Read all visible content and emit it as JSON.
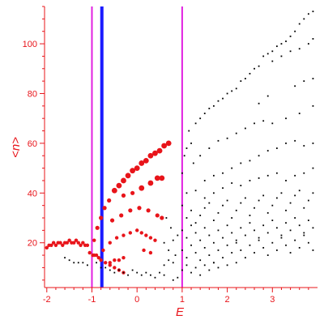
{
  "chart_data": {
    "type": "scatter",
    "title": "",
    "xlabel": "E",
    "ylabel": "<n>",
    "xlim": [
      -2.05,
      4.0
    ],
    "ylim": [
      2,
      115
    ],
    "x_ticks": [
      -2,
      -1,
      0,
      1,
      2,
      3
    ],
    "y_ticks": [
      20,
      40,
      60,
      80,
      100
    ],
    "grid": false,
    "legend": "none",
    "colors": {
      "axis": "#e8141a",
      "red_series": "#e8141a",
      "black_series": "#000000",
      "magenta_line": "#e020e0",
      "blue_line": "#1a1aff"
    },
    "vertical_lines": [
      {
        "x": -1.0,
        "color": "#e020e0"
      },
      {
        "x": -0.78,
        "color": "#1a1aff"
      },
      {
        "x": 1.0,
        "color": "#e020e0"
      }
    ],
    "series": [
      {
        "color": "#e8141a",
        "points": [
          [
            -2.0,
            18
          ],
          [
            -1.95,
            19
          ],
          [
            -1.9,
            19
          ],
          [
            -1.85,
            20
          ],
          [
            -1.8,
            19
          ],
          [
            -1.75,
            20
          ],
          [
            -1.7,
            20
          ],
          [
            -1.65,
            19
          ],
          [
            -1.6,
            20
          ],
          [
            -1.55,
            20
          ],
          [
            -1.5,
            21
          ],
          [
            -1.45,
            20
          ],
          [
            -1.4,
            20
          ],
          [
            -1.35,
            21
          ],
          [
            -1.3,
            20
          ],
          [
            -1.25,
            19
          ],
          [
            -1.2,
            20
          ],
          [
            -1.15,
            19
          ],
          [
            -1.1,
            19
          ],
          [
            -1.05,
            16
          ],
          [
            -0.98,
            15
          ],
          [
            -0.95,
            15
          ],
          [
            -0.9,
            15
          ],
          [
            -0.85,
            14
          ],
          [
            -0.8,
            13
          ],
          [
            -0.7,
            12
          ],
          [
            -0.6,
            11
          ],
          [
            -0.5,
            10
          ],
          [
            -0.4,
            9
          ],
          [
            -0.3,
            8
          ],
          [
            -0.95,
            21
          ],
          [
            -0.88,
            26
          ],
          [
            -0.8,
            30
          ],
          [
            -0.72,
            34
          ],
          [
            -0.62,
            37
          ],
          [
            -0.5,
            41
          ],
          [
            -0.4,
            43
          ],
          [
            -0.3,
            45
          ],
          [
            -0.2,
            47
          ],
          [
            -0.1,
            49
          ],
          [
            0.0,
            50
          ],
          [
            0.1,
            52
          ],
          [
            0.2,
            53
          ],
          [
            0.3,
            55
          ],
          [
            0.4,
            56
          ],
          [
            0.5,
            57
          ],
          [
            0.6,
            59
          ],
          [
            0.7,
            60
          ],
          [
            -0.75,
            17
          ],
          [
            -0.6,
            20
          ],
          [
            -0.45,
            22
          ],
          [
            -0.3,
            23
          ],
          [
            -0.15,
            24
          ],
          [
            0.0,
            25
          ],
          [
            0.1,
            24
          ],
          [
            0.2,
            23
          ],
          [
            0.3,
            22
          ],
          [
            0.4,
            21
          ],
          [
            -0.55,
            29
          ],
          [
            -0.35,
            31
          ],
          [
            -0.15,
            33
          ],
          [
            0.05,
            34
          ],
          [
            0.25,
            33
          ],
          [
            0.45,
            31
          ],
          [
            0.55,
            30
          ],
          [
            -0.3,
            39
          ],
          [
            -0.1,
            40
          ],
          [
            0.1,
            42
          ],
          [
            0.3,
            44
          ],
          [
            0.45,
            46
          ],
          [
            0.55,
            46
          ],
          [
            -0.6,
            12
          ],
          [
            -0.5,
            13
          ],
          [
            -0.4,
            13
          ],
          [
            -0.3,
            14
          ],
          [
            0.15,
            17
          ],
          [
            0.3,
            16
          ]
        ]
      },
      {
        "color": "#000000",
        "points": [
          [
            -1.6,
            14
          ],
          [
            -1.5,
            13
          ],
          [
            -1.4,
            12
          ],
          [
            -1.3,
            12
          ],
          [
            -1.2,
            12
          ],
          [
            -1.1,
            11
          ],
          [
            -0.9,
            12
          ],
          [
            -0.8,
            10
          ],
          [
            -0.7,
            10
          ],
          [
            -0.6,
            9
          ],
          [
            -0.5,
            8
          ],
          [
            -0.4,
            9
          ],
          [
            -0.3,
            8
          ],
          [
            -0.2,
            7
          ],
          [
            -0.1,
            9
          ],
          [
            0.0,
            8
          ],
          [
            0.1,
            7
          ],
          [
            0.2,
            8
          ],
          [
            0.3,
            7
          ],
          [
            0.4,
            6
          ],
          [
            0.5,
            8
          ],
          [
            0.6,
            7
          ],
          [
            0.8,
            5
          ],
          [
            0.9,
            6
          ],
          [
            0.6,
            11
          ],
          [
            0.7,
            13
          ],
          [
            0.8,
            12
          ],
          [
            0.85,
            15
          ],
          [
            0.7,
            17
          ],
          [
            0.6,
            20
          ],
          [
            0.8,
            21
          ],
          [
            0.9,
            23
          ],
          [
            0.65,
            30
          ],
          [
            0.75,
            26
          ],
          [
            1.0,
            48
          ],
          [
            1.05,
            55
          ],
          [
            1.1,
            58
          ],
          [
            1.15,
            65
          ],
          [
            1.2,
            60
          ],
          [
            1.25,
            52
          ],
          [
            1.3,
            68
          ],
          [
            1.4,
            70
          ],
          [
            1.5,
            72
          ],
          [
            1.6,
            74
          ],
          [
            1.7,
            75
          ],
          [
            1.8,
            77
          ],
          [
            1.9,
            78
          ],
          [
            2.0,
            80
          ],
          [
            2.1,
            81
          ],
          [
            2.2,
            82
          ],
          [
            2.3,
            85
          ],
          [
            2.4,
            86
          ],
          [
            2.5,
            88
          ],
          [
            2.6,
            90
          ],
          [
            2.7,
            91
          ],
          [
            2.8,
            95
          ],
          [
            2.9,
            96
          ],
          [
            3.0,
            97
          ],
          [
            3.1,
            99
          ],
          [
            3.2,
            100
          ],
          [
            3.3,
            101
          ],
          [
            3.4,
            103
          ],
          [
            3.5,
            105
          ],
          [
            3.6,
            108
          ],
          [
            3.7,
            110
          ],
          [
            3.8,
            112
          ],
          [
            3.9,
            113
          ],
          [
            3.0,
            93
          ],
          [
            3.2,
            95
          ],
          [
            3.4,
            97
          ],
          [
            3.6,
            98
          ],
          [
            3.8,
            100
          ],
          [
            3.9,
            102
          ],
          [
            2.7,
            76
          ],
          [
            2.9,
            79
          ],
          [
            3.5,
            83
          ],
          [
            3.7,
            85
          ],
          [
            3.9,
            86
          ],
          [
            3.0,
            68
          ],
          [
            3.3,
            70
          ],
          [
            3.6,
            72
          ],
          [
            3.9,
            75
          ],
          [
            1.4,
            55
          ],
          [
            1.6,
            58
          ],
          [
            1.8,
            61
          ],
          [
            2.0,
            62
          ],
          [
            2.2,
            64
          ],
          [
            2.4,
            66
          ],
          [
            2.6,
            68
          ],
          [
            2.8,
            69
          ],
          [
            1.5,
            45
          ],
          [
            1.7,
            47
          ],
          [
            1.9,
            48
          ],
          [
            2.1,
            50
          ],
          [
            2.3,
            52
          ],
          [
            2.5,
            53
          ],
          [
            2.7,
            55
          ],
          [
            2.9,
            57
          ],
          [
            3.1,
            58
          ],
          [
            3.3,
            60
          ],
          [
            3.5,
            61
          ],
          [
            3.7,
            59
          ],
          [
            3.9,
            60
          ],
          [
            1.1,
            40
          ],
          [
            1.3,
            41
          ],
          [
            1.5,
            38
          ],
          [
            1.7,
            40
          ],
          [
            1.9,
            42
          ],
          [
            2.1,
            44
          ],
          [
            2.3,
            43
          ],
          [
            2.5,
            45
          ],
          [
            2.7,
            46
          ],
          [
            2.9,
            47
          ],
          [
            3.1,
            48
          ],
          [
            3.3,
            45
          ],
          [
            3.5,
            47
          ],
          [
            3.7,
            48
          ],
          [
            3.9,
            50
          ],
          [
            1.0,
            35
          ],
          [
            1.1,
            30
          ],
          [
            1.2,
            33
          ],
          [
            1.3,
            28
          ],
          [
            1.4,
            31
          ],
          [
            1.5,
            34
          ],
          [
            1.6,
            36
          ],
          [
            1.7,
            29
          ],
          [
            1.8,
            32
          ],
          [
            1.9,
            35
          ],
          [
            2.0,
            37
          ],
          [
            2.1,
            30
          ],
          [
            2.2,
            33
          ],
          [
            2.3,
            36
          ],
          [
            2.4,
            38
          ],
          [
            2.5,
            31
          ],
          [
            2.6,
            34
          ],
          [
            2.7,
            37
          ],
          [
            2.8,
            39
          ],
          [
            2.9,
            32
          ],
          [
            3.0,
            35
          ],
          [
            3.1,
            38
          ],
          [
            3.2,
            40
          ],
          [
            3.3,
            33
          ],
          [
            3.4,
            36
          ],
          [
            3.5,
            39
          ],
          [
            3.6,
            41
          ],
          [
            3.7,
            34
          ],
          [
            3.8,
            37
          ],
          [
            3.9,
            40
          ],
          [
            1.0,
            25
          ],
          [
            1.1,
            22
          ],
          [
            1.2,
            27
          ],
          [
            1.3,
            24
          ],
          [
            1.4,
            21
          ],
          [
            1.5,
            26
          ],
          [
            1.6,
            23
          ],
          [
            1.7,
            20
          ],
          [
            1.8,
            25
          ],
          [
            1.9,
            22
          ],
          [
            2.0,
            27
          ],
          [
            2.1,
            24
          ],
          [
            2.2,
            21
          ],
          [
            2.3,
            26
          ],
          [
            2.4,
            23
          ],
          [
            2.5,
            28
          ],
          [
            2.6,
            25
          ],
          [
            2.7,
            22
          ],
          [
            2.8,
            27
          ],
          [
            2.9,
            24
          ],
          [
            3.0,
            29
          ],
          [
            3.1,
            26
          ],
          [
            3.2,
            23
          ],
          [
            3.3,
            28
          ],
          [
            3.4,
            25
          ],
          [
            3.5,
            30
          ],
          [
            3.6,
            27
          ],
          [
            3.7,
            24
          ],
          [
            3.8,
            29
          ],
          [
            3.9,
            26
          ],
          [
            1.0,
            17
          ],
          [
            1.1,
            14
          ],
          [
            1.2,
            19
          ],
          [
            1.3,
            16
          ],
          [
            1.4,
            13
          ],
          [
            1.5,
            18
          ],
          [
            1.6,
            15
          ],
          [
            1.7,
            12
          ],
          [
            1.8,
            17
          ],
          [
            1.9,
            14
          ],
          [
            2.0,
            19
          ],
          [
            2.1,
            16
          ],
          [
            2.2,
            20
          ],
          [
            2.3,
            17
          ],
          [
            2.4,
            14
          ],
          [
            2.5,
            19
          ],
          [
            2.6,
            16
          ],
          [
            2.7,
            21
          ],
          [
            2.8,
            18
          ],
          [
            2.9,
            15
          ],
          [
            3.0,
            20
          ],
          [
            3.1,
            17
          ],
          [
            3.2,
            22
          ],
          [
            3.3,
            19
          ],
          [
            3.4,
            16
          ],
          [
            3.5,
            21
          ],
          [
            3.6,
            18
          ],
          [
            3.7,
            23
          ],
          [
            3.8,
            20
          ],
          [
            3.9,
            17
          ],
          [
            1.0,
            9
          ],
          [
            1.1,
            11
          ],
          [
            1.2,
            8
          ],
          [
            1.3,
            10
          ],
          [
            1.4,
            7
          ],
          [
            1.5,
            11
          ],
          [
            1.6,
            9
          ],
          [
            1.7,
            12
          ],
          [
            1.8,
            10
          ],
          [
            2.0,
            11
          ],
          [
            2.2,
            12
          ]
        ]
      }
    ]
  }
}
